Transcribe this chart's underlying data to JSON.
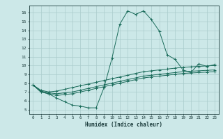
{
  "title": "",
  "xlabel": "Humidex (Indice chaleur)",
  "ylabel": "",
  "xlim": [
    -0.5,
    23.5
  ],
  "ylim": [
    4.5,
    16.8
  ],
  "xticks": [
    0,
    1,
    2,
    3,
    4,
    5,
    6,
    7,
    8,
    9,
    10,
    11,
    12,
    13,
    14,
    15,
    16,
    17,
    18,
    19,
    20,
    21,
    22,
    23
  ],
  "yticks": [
    5,
    6,
    7,
    8,
    9,
    10,
    11,
    12,
    13,
    14,
    15,
    16
  ],
  "bg_color": "#cce8e8",
  "grid_color": "#aacccc",
  "line_color": "#1a6b5a",
  "line1_x": [
    0,
    1,
    2,
    3,
    4,
    5,
    6,
    7,
    8,
    9,
    10,
    11,
    12,
    13,
    14,
    15,
    16,
    17,
    18,
    19,
    20,
    21,
    22,
    23
  ],
  "line1_y": [
    7.8,
    7.0,
    6.8,
    6.3,
    5.9,
    5.5,
    5.4,
    5.2,
    5.2,
    7.5,
    10.8,
    14.7,
    16.2,
    15.8,
    16.2,
    15.2,
    13.9,
    11.2,
    10.7,
    9.5,
    9.2,
    10.2,
    9.9,
    10.1
  ],
  "line2_x": [
    0,
    1,
    2,
    3,
    4,
    5,
    6,
    7,
    8,
    9,
    10,
    11,
    12,
    13,
    14,
    15,
    16,
    17,
    18,
    19,
    20,
    21,
    22,
    23
  ],
  "line2_y": [
    7.8,
    7.2,
    7.0,
    7.1,
    7.3,
    7.5,
    7.7,
    7.9,
    8.1,
    8.3,
    8.5,
    8.7,
    8.9,
    9.1,
    9.3,
    9.4,
    9.5,
    9.6,
    9.7,
    9.8,
    9.85,
    9.9,
    9.95,
    10.0
  ],
  "line3_x": [
    0,
    1,
    2,
    3,
    4,
    5,
    6,
    7,
    8,
    9,
    10,
    11,
    12,
    13,
    14,
    15,
    16,
    17,
    18,
    19,
    20,
    21,
    22,
    23
  ],
  "line3_y": [
    7.8,
    7.1,
    6.9,
    6.8,
    6.9,
    7.0,
    7.2,
    7.4,
    7.6,
    7.8,
    8.0,
    8.2,
    8.4,
    8.6,
    8.8,
    8.9,
    9.0,
    9.1,
    9.2,
    9.3,
    9.35,
    9.4,
    9.45,
    9.5
  ],
  "line4_x": [
    0,
    1,
    2,
    3,
    4,
    5,
    6,
    7,
    8,
    9,
    10,
    11,
    12,
    13,
    14,
    15,
    16,
    17,
    18,
    19,
    20,
    21,
    22,
    23
  ],
  "line4_y": [
    7.8,
    7.0,
    6.8,
    6.6,
    6.7,
    6.8,
    7.0,
    7.2,
    7.4,
    7.6,
    7.8,
    8.0,
    8.2,
    8.4,
    8.6,
    8.7,
    8.8,
    8.9,
    9.0,
    9.1,
    9.15,
    9.2,
    9.25,
    9.3
  ]
}
